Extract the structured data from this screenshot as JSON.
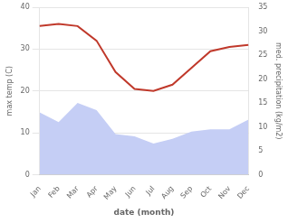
{
  "chart_data": {
    "type": "line",
    "categories": [
      "Jan",
      "Feb",
      "Mar",
      "Apr",
      "May",
      "Jun",
      "Jul",
      "Aug",
      "Sep",
      "Oct",
      "Nov",
      "Dec"
    ],
    "series": [
      {
        "type": "area",
        "axis": "y2",
        "color": "#c5cef5",
        "values": [
          13.0,
          11.0,
          15.0,
          13.5,
          8.5,
          8.0,
          6.5,
          7.5,
          9.0,
          9.5,
          9.5,
          11.5
        ]
      },
      {
        "type": "line",
        "color": "#c0392b",
        "values": [
          35.5,
          36.0,
          35.5,
          32.0,
          24.5,
          20.5,
          20.0,
          21.5,
          25.5,
          29.5,
          30.5,
          31.0
        ]
      }
    ],
    "xlabel": "date (month)",
    "ylabel": "max temp (C)",
    "y2label": "med. precipitation (kg/m2)",
    "ylim": [
      0,
      40
    ],
    "yticks": [
      0,
      10,
      20,
      30,
      40
    ],
    "y2lim": [
      0,
      35
    ],
    "y2ticks": [
      0,
      5,
      10,
      15,
      20,
      25,
      30,
      35
    ],
    "grid": true
  }
}
